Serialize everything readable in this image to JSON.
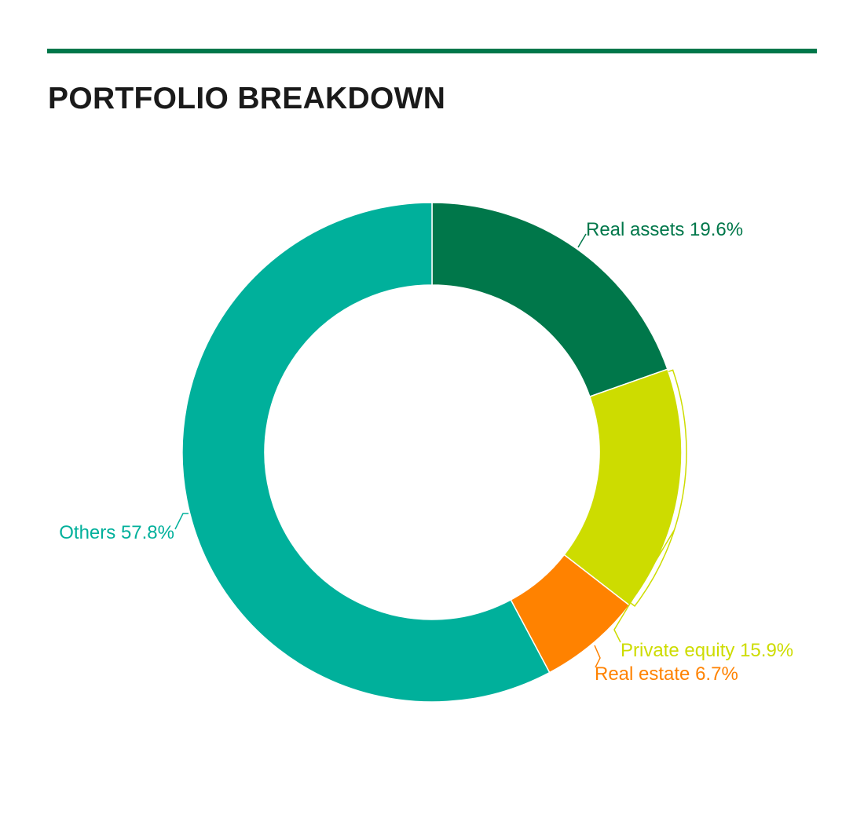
{
  "header": {
    "title": "PORTFOLIO BREAKDOWN",
    "rule_color": "#00774a"
  },
  "chart_data": {
    "type": "pie",
    "style": "donut",
    "title": "PORTFOLIO BREAKDOWN",
    "slices": [
      {
        "label": "Real assets",
        "value": 19.6,
        "display": "Real assets 19.6%",
        "color": "#00774a"
      },
      {
        "label": "Private equity",
        "value": 15.9,
        "display": "Private equity 15.9%",
        "color": "#cddc00"
      },
      {
        "label": "Real estate",
        "value": 6.7,
        "display": "Real estate 6.7%",
        "color": "#ff8200"
      },
      {
        "label": "Others",
        "value": 57.8,
        "display": "Others 57.8%",
        "color": "#00b09b"
      }
    ]
  }
}
